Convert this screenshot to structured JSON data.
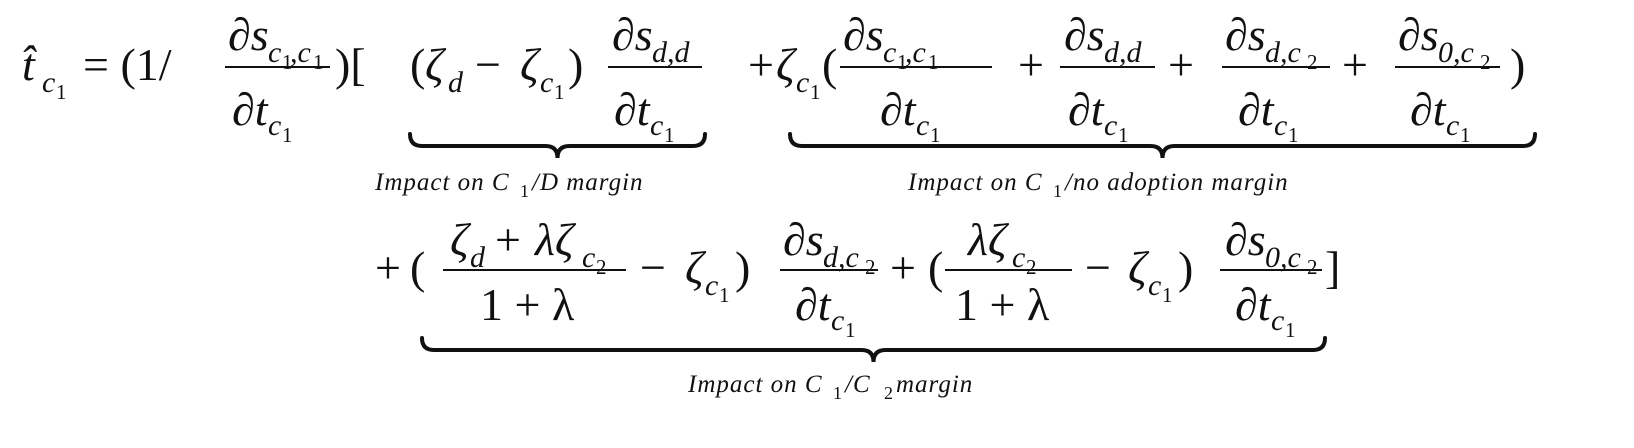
{
  "equation": {
    "line1": [
      "t̂",
      "c",
      "1",
      "= (1/",
      "∂s",
      "c",
      "1",
      ",c",
      "1",
      "∂t",
      "c",
      "1",
      ")[",
      "(",
      "ζ",
      "d",
      "−",
      "ζ",
      "c",
      "1",
      ")",
      "∂s",
      "d,d",
      "∂t",
      "c",
      "1",
      "+",
      "ζ",
      "c",
      "1",
      "(",
      "∂s",
      "c",
      "1",
      ",c",
      "1",
      "∂t",
      "c",
      "1",
      "+",
      "∂s",
      "d,d",
      "∂t",
      "c",
      "1",
      "+",
      "∂s",
      "d,c",
      "2",
      "∂t",
      "c",
      "1",
      "+",
      "∂s",
      "0,c",
      "2",
      "∂t",
      "c",
      "1",
      ")"
    ],
    "line2": [
      "+",
      "(",
      "ζ",
      "d",
      "+",
      "λζ",
      "c",
      "2",
      "1 + λ",
      "−",
      "ζ",
      "c",
      "1",
      ")",
      "∂s",
      "d,c",
      "2",
      "∂t",
      "c",
      "1",
      "+",
      "(",
      "λζ",
      "c",
      "2",
      "1 + λ",
      "−",
      "ζ",
      "c",
      "1",
      ")",
      "∂s",
      "0,c",
      "2",
      "∂t",
      "c",
      "1",
      "]"
    ],
    "labels": [
      [
        "Impact on C",
        "1",
        "/D margin"
      ],
      [
        "Impact on C",
        "1",
        "/no adoption margin"
      ],
      [
        "Impact on C",
        "1",
        "/C",
        "2",
        " margin"
      ]
    ]
  }
}
